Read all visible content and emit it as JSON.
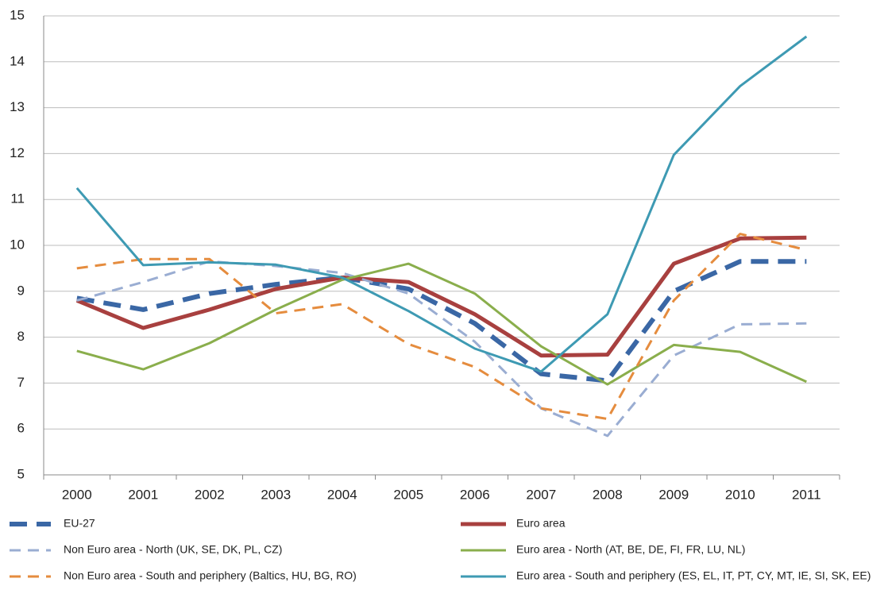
{
  "chart_data": {
    "type": "line",
    "categories": [
      "2000",
      "2001",
      "2002",
      "2003",
      "2004",
      "2005",
      "2006",
      "2007",
      "2008",
      "2009",
      "2010",
      "2011"
    ],
    "ylim": [
      5,
      15
    ],
    "yticks": [
      5,
      6,
      7,
      8,
      9,
      10,
      11,
      12,
      13,
      14,
      15
    ],
    "grid": true,
    "legend": "bottom",
    "series": [
      {
        "name": "EU-27",
        "color": "#3a67a5",
        "style": "thick-dashed",
        "values": [
          8.85,
          8.6,
          8.95,
          9.15,
          9.3,
          9.05,
          8.3,
          7.2,
          7.05,
          9.0,
          9.65,
          9.65
        ]
      },
      {
        "name": "Euro area",
        "color": "#a8403f",
        "style": "thick",
        "values": [
          8.8,
          8.2,
          8.6,
          9.05,
          9.3,
          9.2,
          8.5,
          7.6,
          7.62,
          9.6,
          10.15,
          10.17
        ]
      },
      {
        "name": "Non Euro area - North (UK, SE, DK, PL, CZ)",
        "color": "#9aadd2",
        "style": "dashed",
        "values": [
          8.8,
          9.2,
          9.65,
          9.55,
          9.4,
          8.95,
          7.9,
          6.45,
          5.85,
          7.6,
          8.28,
          8.3
        ]
      },
      {
        "name": "Euro area - North (AT, BE, DE, FI, FR, LU, NL)",
        "color": "#8aae4c",
        "style": "solid",
        "values": [
          7.7,
          7.3,
          7.87,
          8.6,
          9.25,
          9.6,
          8.95,
          7.8,
          6.97,
          7.83,
          7.68,
          7.03
        ]
      },
      {
        "name": "Non Euro area - South and periphery (Baltics, HU, BG, RO)",
        "color": "#e58c3e",
        "style": "dashed",
        "values": [
          9.5,
          9.7,
          9.7,
          8.52,
          8.72,
          7.85,
          7.35,
          6.45,
          6.22,
          8.8,
          10.25,
          9.9
        ]
      },
      {
        "name": "Euro area - South and periphery (ES, EL, IT, PT, CY, MT, IE, SI, SK, EE)",
        "color": "#3e9ab3",
        "style": "solid",
        "values": [
          11.25,
          9.57,
          9.63,
          9.58,
          9.3,
          8.57,
          7.75,
          7.25,
          8.5,
          11.97,
          13.47,
          14.55
        ]
      }
    ]
  }
}
